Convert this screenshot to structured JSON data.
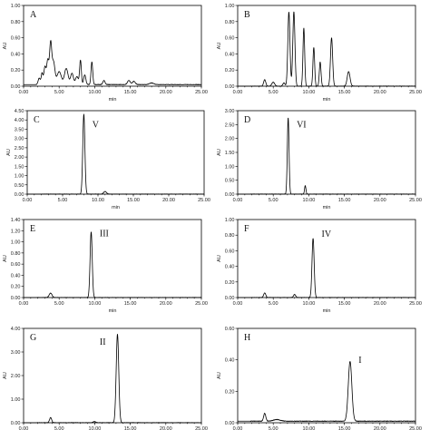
{
  "chart_data": [
    {
      "panel": "A",
      "type": "line",
      "xlabel": "min",
      "ylabel": "AU",
      "xlim": [
        0,
        25
      ],
      "ylim": [
        0,
        1.0
      ],
      "xticks": [
        "0.00",
        "5.00",
        "10.00",
        "15.00",
        "20.00",
        "25.00"
      ],
      "xtick_values": [
        0,
        5,
        10,
        15,
        20,
        25
      ],
      "yticks": [
        "0.00",
        "0.20",
        "0.40",
        "0.60",
        "0.80",
        "1.00"
      ],
      "ytick_values": [
        0,
        0.2,
        0.4,
        0.6,
        0.8,
        1.0
      ],
      "peak_label": "",
      "baseline": 0.02,
      "peaks": [
        {
          "t": 2.2,
          "h": 0.08,
          "w": 0.15
        },
        {
          "t": 2.6,
          "h": 0.14,
          "w": 0.12
        },
        {
          "t": 3.0,
          "h": 0.22,
          "w": 0.15
        },
        {
          "t": 3.4,
          "h": 0.3,
          "w": 0.15
        },
        {
          "t": 3.8,
          "h": 0.5,
          "w": 0.15
        },
        {
          "t": 4.2,
          "h": 0.28,
          "w": 0.2
        },
        {
          "t": 5.0,
          "h": 0.16,
          "w": 0.3
        },
        {
          "t": 6.0,
          "h": 0.2,
          "w": 0.25
        },
        {
          "t": 6.8,
          "h": 0.14,
          "w": 0.2
        },
        {
          "t": 7.5,
          "h": 0.1,
          "w": 0.2
        },
        {
          "t": 8.0,
          "h": 0.3,
          "w": 0.12
        },
        {
          "t": 8.6,
          "h": 0.12,
          "w": 0.15
        },
        {
          "t": 9.6,
          "h": 0.28,
          "w": 0.12
        },
        {
          "t": 11.3,
          "h": 0.05,
          "w": 0.15
        },
        {
          "t": 14.8,
          "h": 0.05,
          "w": 0.2
        },
        {
          "t": 15.5,
          "h": 0.04,
          "w": 0.2
        },
        {
          "t": 18.0,
          "h": 0.02,
          "w": 0.3
        }
      ]
    },
    {
      "panel": "B",
      "type": "line",
      "xlabel": "min",
      "ylabel": "AU",
      "xlim": [
        0,
        25
      ],
      "ylim": [
        0,
        1.0
      ],
      "xticks": [
        "0.00",
        "5.00",
        "10.00",
        "15.00",
        "20.00",
        "25.00"
      ],
      "xtick_values": [
        0,
        5,
        10,
        15,
        20,
        25
      ],
      "yticks": [
        "0.00",
        "0.20",
        "0.40",
        "0.60",
        "0.80",
        "1.00"
      ],
      "ytick_values": [
        0,
        0.2,
        0.4,
        0.6,
        0.8,
        1.0
      ],
      "peak_label": "",
      "baseline": 0.0,
      "peaks": [
        {
          "t": 3.8,
          "h": 0.08,
          "w": 0.15
        },
        {
          "t": 5.0,
          "h": 0.05,
          "w": 0.2
        },
        {
          "t": 6.5,
          "h": 0.04,
          "w": 0.15
        },
        {
          "t": 7.2,
          "h": 0.92,
          "w": 0.15
        },
        {
          "t": 7.9,
          "h": 0.92,
          "w": 0.15
        },
        {
          "t": 9.3,
          "h": 0.72,
          "w": 0.12
        },
        {
          "t": 10.7,
          "h": 0.48,
          "w": 0.12
        },
        {
          "t": 11.6,
          "h": 0.3,
          "w": 0.12
        },
        {
          "t": 13.2,
          "h": 0.6,
          "w": 0.15
        },
        {
          "t": 15.6,
          "h": 0.18,
          "w": 0.2
        }
      ]
    },
    {
      "panel": "C",
      "type": "line",
      "xlabel": "min",
      "ylabel": "AU",
      "xlim": [
        0,
        25
      ],
      "ylim": [
        0,
        4.5
      ],
      "xticks": [
        "0.00",
        "5.00",
        "10.00",
        "15.00",
        "20.00",
        "25.00"
      ],
      "xtick_values": [
        0,
        5,
        10,
        15,
        20,
        25
      ],
      "yticks": [
        "0.00",
        "0.50",
        "1.00",
        "1.50",
        "2.00",
        "2.50",
        "3.00",
        "3.50",
        "4.00",
        "4.50"
      ],
      "ytick_values": [
        0,
        0.5,
        1,
        1.5,
        2,
        2.5,
        3,
        3.5,
        4,
        4.5
      ],
      "peak_label": "V",
      "label_value": 3.6,
      "baseline": 0.0,
      "peaks": [
        {
          "t": 8.0,
          "h": 4.3,
          "w": 0.15
        },
        {
          "t": 11.0,
          "h": 0.15,
          "w": 0.2
        }
      ]
    },
    {
      "panel": "D",
      "type": "line",
      "xlabel": "min",
      "ylabel": "AU",
      "xlim": [
        0,
        25
      ],
      "ylim": [
        0,
        3.0
      ],
      "xticks": [
        "0.00",
        "5.00",
        "10.00",
        "15.00",
        "20.00",
        "25.00"
      ],
      "xtick_values": [
        0,
        5,
        10,
        15,
        20,
        25
      ],
      "yticks": [
        "0.00",
        "0.50",
        "1.00",
        "1.50",
        "2.00",
        "2.50",
        "3.00"
      ],
      "ytick_values": [
        0,
        0.5,
        1,
        1.5,
        2,
        2.5,
        3
      ],
      "peak_label": "VI",
      "label_value": 2.4,
      "baseline": 0.0,
      "peaks": [
        {
          "t": 7.1,
          "h": 2.75,
          "w": 0.12
        },
        {
          "t": 9.5,
          "h": 0.3,
          "w": 0.1
        }
      ]
    },
    {
      "panel": "E",
      "type": "line",
      "xlabel": "min",
      "ylabel": "AU",
      "xlim": [
        0,
        25
      ],
      "ylim": [
        0,
        1.4
      ],
      "xticks": [
        "0.00",
        "5.00",
        "10.00",
        "15.00",
        "20.00",
        "25.00"
      ],
      "xtick_values": [
        0,
        5,
        10,
        15,
        20,
        25
      ],
      "yticks": [
        "0.00",
        "0.20",
        "0.40",
        "0.60",
        "0.80",
        "1.00",
        "1.20",
        "1.40"
      ],
      "ytick_values": [
        0,
        0.2,
        0.4,
        0.6,
        0.8,
        1.0,
        1.2,
        1.4
      ],
      "peak_label": "III",
      "label_value": 1.1,
      "baseline": 0.0,
      "peaks": [
        {
          "t": 3.8,
          "h": 0.08,
          "w": 0.2
        },
        {
          "t": 9.5,
          "h": 1.18,
          "w": 0.15
        }
      ]
    },
    {
      "panel": "F",
      "type": "line",
      "xlabel": "min",
      "ylabel": "AU",
      "xlim": [
        0,
        25
      ],
      "ylim": [
        0,
        1.0
      ],
      "xticks": [
        "0.00",
        "5.00",
        "10.00",
        "15.00",
        "20.00",
        "25.00"
      ],
      "xtick_values": [
        0,
        5,
        10,
        15,
        20,
        25
      ],
      "yticks": [
        "0.00",
        "0.20",
        "0.40",
        "0.60",
        "0.80",
        "1.00"
      ],
      "ytick_values": [
        0,
        0.2,
        0.4,
        0.6,
        0.8,
        1.0
      ],
      "peak_label": "IV",
      "label_value": 0.78,
      "baseline": 0.0,
      "peaks": [
        {
          "t": 3.8,
          "h": 0.06,
          "w": 0.15
        },
        {
          "t": 8.0,
          "h": 0.04,
          "w": 0.15
        },
        {
          "t": 10.6,
          "h": 0.76,
          "w": 0.15
        }
      ]
    },
    {
      "panel": "G",
      "type": "line",
      "xlabel": "min",
      "ylabel": "AU",
      "xlim": [
        0,
        25
      ],
      "ylim": [
        0,
        4.0
      ],
      "xticks": [
        "0.00",
        "5.00",
        "10.00",
        "15.00",
        "20.00",
        "25.00"
      ],
      "xtick_values": [
        0,
        5,
        10,
        15,
        20,
        25
      ],
      "yticks": [
        "0.00",
        "1.00",
        "2.00",
        "3.00",
        "4.00"
      ],
      "ytick_values": [
        0,
        1,
        2,
        3,
        4
      ],
      "peak_label": "II",
      "label_value": 3.3,
      "baseline": 0.0,
      "peaks": [
        {
          "t": 3.8,
          "h": 0.22,
          "w": 0.15
        },
        {
          "t": 10.0,
          "h": 0.05,
          "w": 0.2
        },
        {
          "t": 13.2,
          "h": 3.75,
          "w": 0.18
        }
      ]
    },
    {
      "panel": "H",
      "type": "line",
      "xlabel": "min",
      "ylabel": "AU",
      "xlim": [
        0,
        25
      ],
      "ylim": [
        0,
        0.6
      ],
      "xticks": [
        "0.00",
        "5.00",
        "10.00",
        "15.00",
        "20.00",
        "25.00"
      ],
      "xtick_values": [
        0,
        5,
        10,
        15,
        20,
        25
      ],
      "yticks": [
        "0.00",
        "0.20",
        "0.40",
        "0.60"
      ],
      "ytick_values": [
        0,
        0.2,
        0.4,
        0.6
      ],
      "peak_label": "I",
      "label_value": 0.38,
      "baseline": 0.01,
      "peaks": [
        {
          "t": 3.8,
          "h": 0.05,
          "w": 0.15
        },
        {
          "t": 5.5,
          "h": 0.01,
          "w": 0.5
        },
        {
          "t": 15.8,
          "h": 0.38,
          "w": 0.25
        }
      ]
    }
  ]
}
